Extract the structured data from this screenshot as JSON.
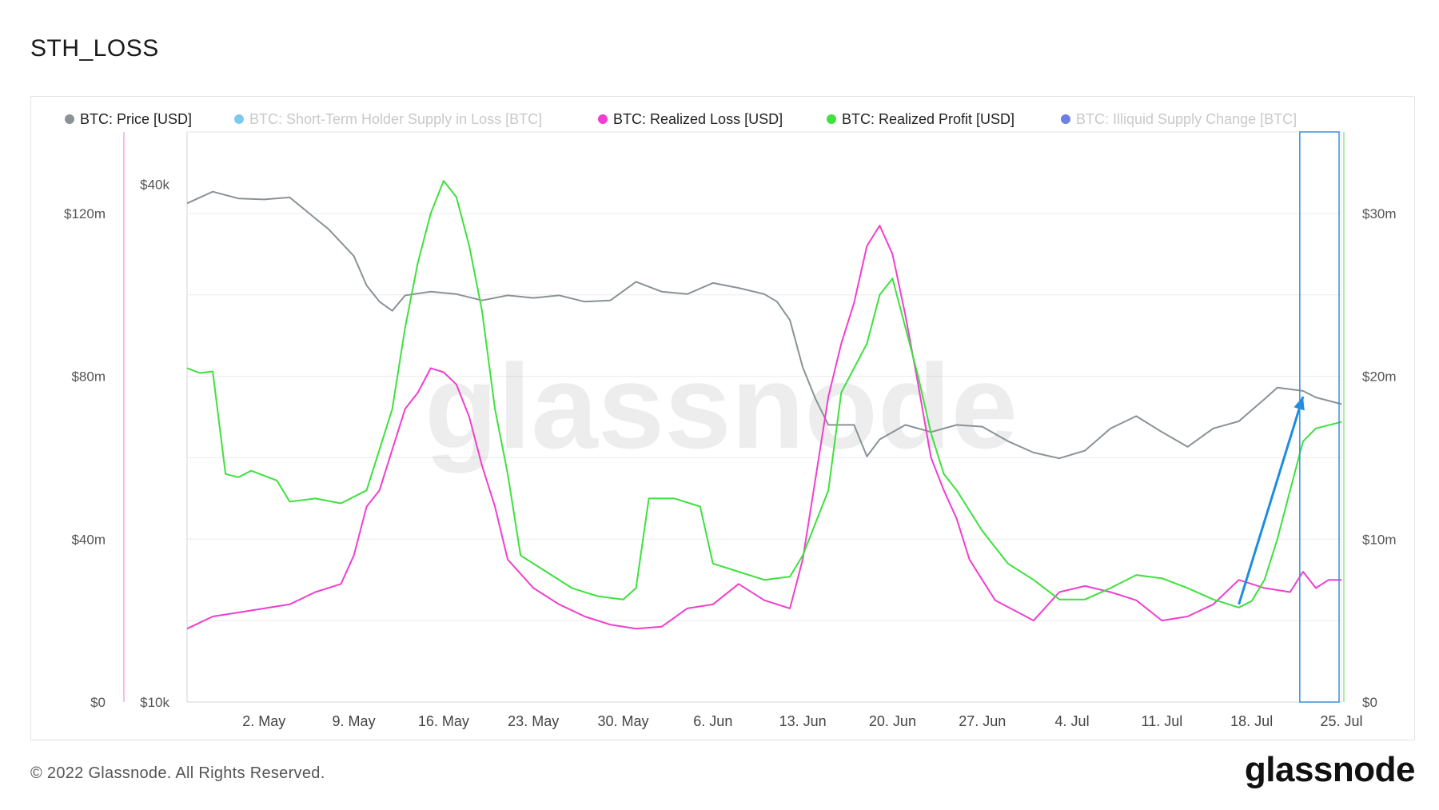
{
  "page": {
    "title": "STH_LOSS",
    "copyright": "© 2022 Glassnode. All Rights Reserved.",
    "brand": "glassnode",
    "watermark": "glassnode"
  },
  "chart_data": {
    "type": "line",
    "title": "STH_LOSS",
    "legend_position": "top",
    "grid": true,
    "legend": [
      {
        "name": "BTC: Price [USD]",
        "color": "#8a9296",
        "active": true
      },
      {
        "name": "BTC: Short-Term Holder Supply in Loss [BTC]",
        "color": "#67c1ec",
        "active": false
      },
      {
        "name": "BTC: Realized Loss [USD]",
        "color": "#f03fcf",
        "active": true
      },
      {
        "name": "BTC: Realized Profit [USD]",
        "color": "#3ee13e",
        "active": true
      },
      {
        "name": "BTC: Illiquid Supply Change [BTC]",
        "color": "#5667e0",
        "active": false
      }
    ],
    "x_ticks": [
      "2. May",
      "9. May",
      "16. May",
      "23. May",
      "30. May",
      "6. Jun",
      "13. Jun",
      "20. Jun",
      "27. Jun",
      "4. Jul",
      "11. Jul",
      "18. Jul",
      "25. Jul"
    ],
    "x_start": "2022-04-26",
    "x_end": "2022-07-25",
    "y_left_outer": {
      "ticks": [
        "$0",
        "$40m",
        "$80m",
        "$120m"
      ],
      "range": [
        0,
        140000000
      ],
      "series": "BTC: Realized Loss [USD]"
    },
    "y_left_inner": {
      "ticks": [
        "$10k",
        "$40k"
      ],
      "range": [
        10000,
        46000
      ],
      "scale": "log",
      "series": "BTC: Price [USD]"
    },
    "y_right": {
      "ticks": [
        "$0",
        "$10m",
        "$20m",
        "$30m"
      ],
      "range": [
        0,
        35000000
      ],
      "series": "BTC: Realized Profit [USD]"
    },
    "series": [
      {
        "name": "BTC: Price [USD]",
        "color": "#8a9296",
        "points": [
          [
            "2022-04-26",
            38000
          ],
          [
            "2022-04-28",
            39200
          ],
          [
            "2022-04-30",
            38500
          ],
          [
            "2022-05-02",
            38400
          ],
          [
            "2022-05-04",
            38600
          ],
          [
            "2022-05-06",
            36500
          ],
          [
            "2022-05-07",
            35500
          ],
          [
            "2022-05-09",
            33000
          ],
          [
            "2022-05-10",
            30500
          ],
          [
            "2022-05-11",
            29200
          ],
          [
            "2022-05-12",
            28500
          ],
          [
            "2022-05-13",
            29700
          ],
          [
            "2022-05-15",
            30000
          ],
          [
            "2022-05-17",
            29800
          ],
          [
            "2022-05-19",
            29300
          ],
          [
            "2022-05-21",
            29700
          ],
          [
            "2022-05-23",
            29500
          ],
          [
            "2022-05-25",
            29700
          ],
          [
            "2022-05-27",
            29200
          ],
          [
            "2022-05-29",
            29300
          ],
          [
            "2022-05-31",
            30800
          ],
          [
            "2022-06-02",
            30000
          ],
          [
            "2022-06-04",
            29800
          ],
          [
            "2022-06-06",
            30700
          ],
          [
            "2022-06-08",
            30300
          ],
          [
            "2022-06-10",
            29800
          ],
          [
            "2022-06-11",
            29200
          ],
          [
            "2022-06-12",
            27800
          ],
          [
            "2022-06-13",
            24500
          ],
          [
            "2022-06-14",
            22500
          ],
          [
            "2022-06-15",
            21000
          ],
          [
            "2022-06-17",
            21000
          ],
          [
            "2022-06-18",
            19300
          ],
          [
            "2022-06-19",
            20200
          ],
          [
            "2022-06-21",
            21000
          ],
          [
            "2022-06-23",
            20600
          ],
          [
            "2022-06-25",
            21000
          ],
          [
            "2022-06-27",
            20900
          ],
          [
            "2022-06-29",
            20100
          ],
          [
            "2022-07-01",
            19500
          ],
          [
            "2022-07-03",
            19200
          ],
          [
            "2022-07-05",
            19600
          ],
          [
            "2022-07-07",
            20800
          ],
          [
            "2022-07-09",
            21500
          ],
          [
            "2022-07-11",
            20600
          ],
          [
            "2022-07-13",
            19800
          ],
          [
            "2022-07-15",
            20800
          ],
          [
            "2022-07-17",
            21200
          ],
          [
            "2022-07-19",
            22500
          ],
          [
            "2022-07-20",
            23200
          ],
          [
            "2022-07-22",
            23000
          ],
          [
            "2022-07-23",
            22600
          ],
          [
            "2022-07-25",
            22200
          ]
        ]
      },
      {
        "name": "BTC: Realized Loss [USD]",
        "color": "#f03fcf",
        "points": [
          [
            "2022-04-26",
            18000000
          ],
          [
            "2022-04-28",
            21000000
          ],
          [
            "2022-04-30",
            22000000
          ],
          [
            "2022-05-02",
            23000000
          ],
          [
            "2022-05-04",
            24000000
          ],
          [
            "2022-05-06",
            27000000
          ],
          [
            "2022-05-08",
            29000000
          ],
          [
            "2022-05-09",
            36000000
          ],
          [
            "2022-05-10",
            48000000
          ],
          [
            "2022-05-11",
            52000000
          ],
          [
            "2022-05-12",
            62000000
          ],
          [
            "2022-05-13",
            72000000
          ],
          [
            "2022-05-14",
            76000000
          ],
          [
            "2022-05-15",
            82000000
          ],
          [
            "2022-05-16",
            81000000
          ],
          [
            "2022-05-17",
            78000000
          ],
          [
            "2022-05-18",
            70000000
          ],
          [
            "2022-05-19",
            58000000
          ],
          [
            "2022-05-20",
            48000000
          ],
          [
            "2022-05-21",
            35000000
          ],
          [
            "2022-05-23",
            28000000
          ],
          [
            "2022-05-25",
            24000000
          ],
          [
            "2022-05-27",
            21000000
          ],
          [
            "2022-05-29",
            19000000
          ],
          [
            "2022-05-31",
            18000000
          ],
          [
            "2022-06-02",
            18500000
          ],
          [
            "2022-06-04",
            23000000
          ],
          [
            "2022-06-06",
            24000000
          ],
          [
            "2022-06-08",
            29000000
          ],
          [
            "2022-06-10",
            25000000
          ],
          [
            "2022-06-12",
            23000000
          ],
          [
            "2022-06-13",
            35000000
          ],
          [
            "2022-06-14",
            55000000
          ],
          [
            "2022-06-15",
            75000000
          ],
          [
            "2022-06-16",
            88000000
          ],
          [
            "2022-06-17",
            98000000
          ],
          [
            "2022-06-18",
            112000000
          ],
          [
            "2022-06-19",
            117000000
          ],
          [
            "2022-06-20",
            110000000
          ],
          [
            "2022-06-21",
            95000000
          ],
          [
            "2022-06-22",
            78000000
          ],
          [
            "2022-06-23",
            60000000
          ],
          [
            "2022-06-24",
            52000000
          ],
          [
            "2022-06-25",
            45000000
          ],
          [
            "2022-06-26",
            35000000
          ],
          [
            "2022-06-28",
            25000000
          ],
          [
            "2022-07-01",
            20000000
          ],
          [
            "2022-07-03",
            27000000
          ],
          [
            "2022-07-05",
            28500000
          ],
          [
            "2022-07-07",
            27000000
          ],
          [
            "2022-07-09",
            25000000
          ],
          [
            "2022-07-11",
            20000000
          ],
          [
            "2022-07-13",
            21000000
          ],
          [
            "2022-07-15",
            24000000
          ],
          [
            "2022-07-17",
            30000000
          ],
          [
            "2022-07-19",
            28000000
          ],
          [
            "2022-07-21",
            27000000
          ],
          [
            "2022-07-22",
            32000000
          ],
          [
            "2022-07-23",
            28000000
          ],
          [
            "2022-07-24",
            30000000
          ],
          [
            "2022-07-25",
            30000000
          ]
        ]
      },
      {
        "name": "BTC: Realized Profit [USD]",
        "color": "#3ee13e",
        "points": [
          [
            "2022-04-26",
            20500000
          ],
          [
            "2022-04-27",
            20200000
          ],
          [
            "2022-04-28",
            20300000
          ],
          [
            "2022-04-29",
            14000000
          ],
          [
            "2022-04-30",
            13800000
          ],
          [
            "2022-05-01",
            14200000
          ],
          [
            "2022-05-03",
            13600000
          ],
          [
            "2022-05-04",
            12300000
          ],
          [
            "2022-05-06",
            12500000
          ],
          [
            "2022-05-08",
            12200000
          ],
          [
            "2022-05-10",
            13000000
          ],
          [
            "2022-05-11",
            15500000
          ],
          [
            "2022-05-12",
            18000000
          ],
          [
            "2022-05-13",
            23000000
          ],
          [
            "2022-05-14",
            27000000
          ],
          [
            "2022-05-15",
            30000000
          ],
          [
            "2022-05-16",
            32000000
          ],
          [
            "2022-05-17",
            31000000
          ],
          [
            "2022-05-18",
            28000000
          ],
          [
            "2022-05-19",
            24000000
          ],
          [
            "2022-05-20",
            18000000
          ],
          [
            "2022-05-21",
            14000000
          ],
          [
            "2022-05-22",
            9000000
          ],
          [
            "2022-05-24",
            8000000
          ],
          [
            "2022-05-26",
            7000000
          ],
          [
            "2022-05-28",
            6500000
          ],
          [
            "2022-05-30",
            6300000
          ],
          [
            "2022-05-31",
            7000000
          ],
          [
            "2022-06-01",
            12500000
          ],
          [
            "2022-06-03",
            12500000
          ],
          [
            "2022-06-05",
            12000000
          ],
          [
            "2022-06-06",
            8500000
          ],
          [
            "2022-06-08",
            8000000
          ],
          [
            "2022-06-10",
            7500000
          ],
          [
            "2022-06-12",
            7700000
          ],
          [
            "2022-06-13",
            9000000
          ],
          [
            "2022-06-14",
            11000000
          ],
          [
            "2022-06-15",
            13000000
          ],
          [
            "2022-06-16",
            19000000
          ],
          [
            "2022-06-17",
            20500000
          ],
          [
            "2022-06-18",
            22000000
          ],
          [
            "2022-06-19",
            25000000
          ],
          [
            "2022-06-20",
            26000000
          ],
          [
            "2022-06-21",
            23000000
          ],
          [
            "2022-06-22",
            20000000
          ],
          [
            "2022-06-23",
            16500000
          ],
          [
            "2022-06-24",
            14000000
          ],
          [
            "2022-06-25",
            13000000
          ],
          [
            "2022-06-27",
            10500000
          ],
          [
            "2022-06-29",
            8500000
          ],
          [
            "2022-07-01",
            7500000
          ],
          [
            "2022-07-03",
            6300000
          ],
          [
            "2022-07-05",
            6300000
          ],
          [
            "2022-07-07",
            7000000
          ],
          [
            "2022-07-09",
            7800000
          ],
          [
            "2022-07-11",
            7600000
          ],
          [
            "2022-07-13",
            7000000
          ],
          [
            "2022-07-15",
            6300000
          ],
          [
            "2022-07-17",
            5800000
          ],
          [
            "2022-07-18",
            6200000
          ],
          [
            "2022-07-19",
            7500000
          ],
          [
            "2022-07-20",
            10000000
          ],
          [
            "2022-07-21",
            13000000
          ],
          [
            "2022-07-22",
            16000000
          ],
          [
            "2022-07-23",
            16800000
          ],
          [
            "2022-07-24",
            17000000
          ],
          [
            "2022-07-25",
            17200000
          ]
        ]
      }
    ],
    "annotations": [
      {
        "type": "arrow",
        "color": "#1e8de0",
        "from": [
          "2022-07-17",
          24000000
        ],
        "to": [
          "2022-07-22",
          75000000
        ]
      },
      {
        "type": "highlight-rect",
        "color": "#3a8fd6",
        "x_range": [
          "2022-07-22",
          "2022-07-25"
        ]
      }
    ]
  }
}
